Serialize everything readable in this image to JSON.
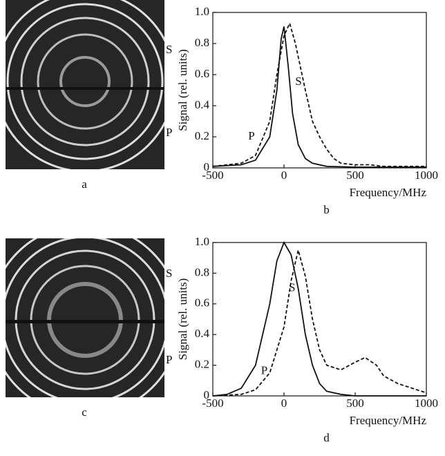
{
  "panels": [
    {
      "caption": "a",
      "annotations": [
        "S",
        "P"
      ]
    },
    {
      "caption": "c",
      "annotations": [
        "S",
        "P"
      ]
    }
  ],
  "chart_data": [
    {
      "type": "line",
      "caption": "b",
      "xlabel": "Frequency/MHz",
      "ylabel": "Signal (rel. units)",
      "xlim": [
        -500,
        1000
      ],
      "xticks": [
        -500,
        0,
        500,
        1000
      ],
      "ylim": [
        0,
        1
      ],
      "yticks": [
        0,
        0.2,
        0.4,
        0.6,
        0.8,
        {
          "value": 1,
          "label": "1.0"
        }
      ],
      "annotations": [
        "S",
        "P"
      ],
      "series": [
        {
          "name": "P",
          "color": "#111",
          "dash": false,
          "x": [
            -500,
            -300,
            -200,
            -100,
            -50,
            -20,
            0,
            30,
            60,
            100,
            150,
            200,
            300,
            500,
            1000
          ],
          "values": [
            0.01,
            0.02,
            0.05,
            0.2,
            0.5,
            0.83,
            0.91,
            0.65,
            0.35,
            0.15,
            0.06,
            0.03,
            0.01,
            0.005,
            0.005
          ]
        },
        {
          "name": "S",
          "color": "#111",
          "dash": true,
          "x": [
            -500,
            -300,
            -200,
            -100,
            -50,
            0,
            40,
            80,
            150,
            200,
            250,
            300,
            350,
            400,
            500,
            600,
            700,
            1000
          ],
          "values": [
            0.01,
            0.03,
            0.08,
            0.3,
            0.6,
            0.85,
            0.93,
            0.8,
            0.5,
            0.3,
            0.2,
            0.12,
            0.06,
            0.03,
            0.02,
            0.02,
            0.01,
            0.01
          ]
        }
      ]
    },
    {
      "type": "line",
      "caption": "d",
      "xlabel": "Frequency/MHz",
      "ylabel": "Signal (rel. units)",
      "xlim": [
        -500,
        1000
      ],
      "xticks": [
        -500,
        0,
        500,
        1000
      ],
      "ylim": [
        0,
        1
      ],
      "yticks": [
        0,
        0.2,
        0.4,
        0.6,
        0.8,
        {
          "value": 1,
          "label": "1.0"
        }
      ],
      "annotations": [
        "S",
        "P"
      ],
      "series": [
        {
          "name": "P",
          "color": "#111",
          "dash": false,
          "x": [
            -500,
            -400,
            -300,
            -200,
            -100,
            -50,
            0,
            50,
            100,
            150,
            200,
            250,
            300,
            400,
            500,
            1000
          ],
          "values": [
            0,
            0.01,
            0.05,
            0.2,
            0.6,
            0.88,
            1.0,
            0.92,
            0.7,
            0.4,
            0.2,
            0.08,
            0.03,
            0.01,
            0,
            0
          ]
        },
        {
          "name": "S",
          "color": "#111",
          "dash": true,
          "x": [
            -500,
            -300,
            -200,
            -100,
            0,
            50,
            100,
            150,
            200,
            250,
            300,
            400,
            500,
            570,
            650,
            700,
            800,
            900,
            1000
          ],
          "values": [
            0,
            0.01,
            0.04,
            0.15,
            0.45,
            0.75,
            0.95,
            0.78,
            0.5,
            0.3,
            0.2,
            0.17,
            0.22,
            0.25,
            0.2,
            0.13,
            0.08,
            0.05,
            0.02
          ]
        }
      ]
    }
  ]
}
